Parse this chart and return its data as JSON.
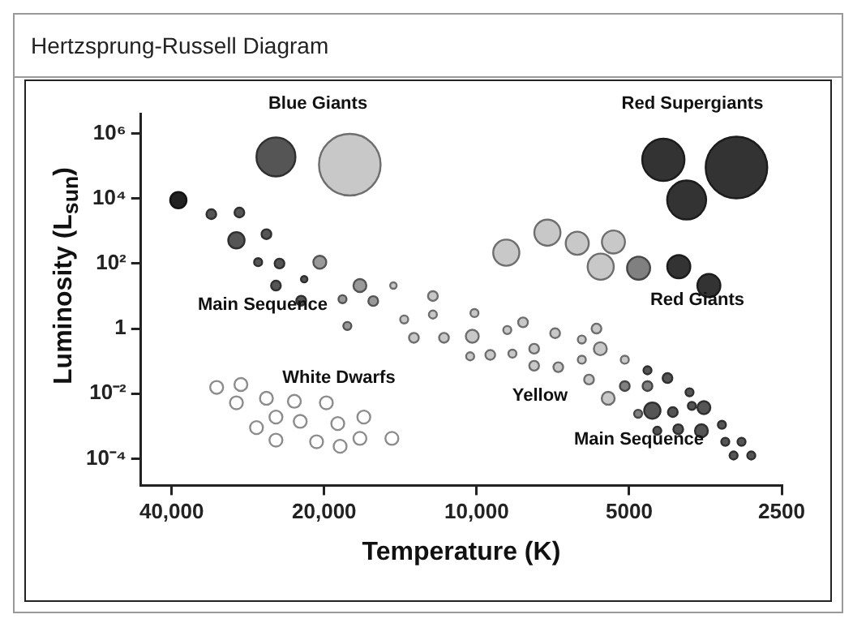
{
  "chart_data": {
    "type": "bubble",
    "title": "Hertzsprung-Russell Diagram",
    "xlabel": "Temperature (K)",
    "ylabel": "Luminosity (L$_{sun}$)",
    "log": "xy",
    "grid": false,
    "legend": false,
    "xlim": [
      46000,
      2500
    ],
    "xticks": [
      {
        "value": 40000,
        "label": "40,000"
      },
      {
        "value": 20000,
        "label": "20,000"
      },
      {
        "value": 10000,
        "label": "10,000"
      },
      5000,
      2500
    ],
    "ylim": [
      1.5e-05,
      4000000
    ],
    "yticks": [
      {
        "value": 0.0001,
        "label": "10⁻⁴"
      },
      {
        "value": 0.01,
        "label": "10⁻²"
      },
      1,
      {
        "value": 100,
        "label": "10²"
      },
      {
        "value": 10000,
        "label": "10⁴"
      },
      {
        "value": 1000000,
        "label": "10⁶"
      }
    ],
    "series": [
      {
        "color": "#222222",
        "x": [
          38800
        ],
        "values": [
          8900
        ],
        "sizes": [
          0.07
        ]
      },
      {
        "color": "#555555",
        "x": [
          24900,
          33400,
          29400,
          29800,
          26000,
          27000,
          24500,
          24900,
          21900,
          22200,
          4600,
          4200,
          3800,
          4500,
          4100,
          3760,
          3560,
          4400,
          4000,
          3600,
          3280,
          3230,
          3000,
          3110,
          2870
        ],
        "values": [
          190000,
          3300,
          3700,
          520,
          800,
          110,
          100,
          21,
          33,
          7.2,
          0.052,
          0.03,
          0.011,
          0.003,
          0.0027,
          0.0042,
          0.0037,
          0.00072,
          0.0008,
          0.00072,
          0.0011,
          0.00033,
          0.00033,
          0.000125,
          0.000125
        ],
        "sizes": [
          0.4,
          0.025,
          0.025,
          0.07,
          0.025,
          0.017,
          0.025,
          0.025,
          0.011,
          0.025,
          0.017,
          0.025,
          0.017,
          0.07,
          0.025,
          0.017,
          0.044,
          0.017,
          0.025,
          0.044,
          0.017,
          0.017,
          0.017,
          0.017,
          0.017
        ]
      },
      {
        "color": "#333333",
        "x": [
          4280,
          3070,
          3850,
          3990,
          3480
        ],
        "values": [
          155000,
          90000,
          9000,
          80,
          21
        ],
        "sizes": [
          0.47,
          1,
          0.4,
          0.14,
          0.14
        ]
      },
      {
        "color": "#808080",
        "x": [
          4790,
          5100,
          4600,
          4800
        ],
        "values": [
          72,
          0.017,
          0.017,
          0.0024
        ],
        "sizes": [
          0.14,
          0.025,
          0.025,
          0.017
        ]
      },
      {
        "color": "#999999",
        "x": [
          20400,
          18400,
          17000,
          16000,
          18000
        ],
        "values": [
          110,
          8,
          21,
          7,
          1.2
        ],
        "sizes": [
          0.044,
          0.017,
          0.044,
          0.025,
          0.017
        ]
      },
      {
        "color": "#c8c8c8",
        "x": [
          17800,
          8740,
          7250,
          6330,
          5370,
          5690,
          14600,
          12200,
          13900,
          13300,
          12200,
          10100,
          11600,
          10200,
          8700,
          8100,
          7000,
          6200,
          5800,
          5700,
          10300,
          9400,
          8500,
          7700,
          7700,
          6900,
          6200,
          5100,
          6000,
          5500
        ],
        "values": [
          110000,
          215,
          890,
          420,
          460,
          80,
          21,
          10,
          1.9,
          0.52,
          2.7,
          3,
          0.52,
          0.58,
          0.9,
          1.55,
          0.72,
          0.46,
          1,
          0.24,
          0.14,
          0.155,
          0.17,
          0.24,
          0.072,
          0.065,
          0.11,
          0.11,
          0.027,
          0.0072
        ],
        "sizes": [
          1,
          0.18,
          0.18,
          0.14,
          0.14,
          0.18,
          0.011,
          0.025,
          0.017,
          0.025,
          0.017,
          0.017,
          0.025,
          0.044,
          0.017,
          0.025,
          0.025,
          0.017,
          0.025,
          0.044,
          0.017,
          0.025,
          0.017,
          0.025,
          0.025,
          0.025,
          0.017,
          0.017,
          0.025,
          0.044
        ]
      },
      {
        "color": "#ffffff",
        "x": [
          32600,
          29200,
          29800,
          26000,
          22900,
          19800,
          24900,
          22300,
          18800,
          16700,
          27200,
          24900,
          20700,
          18600,
          17000,
          14700
        ],
        "values": [
          0.0155,
          0.019,
          0.0052,
          0.0072,
          0.0058,
          0.0052,
          0.0019,
          0.0014,
          0.0012,
          0.0019,
          0.0009,
          0.00037,
          0.00033,
          0.00024,
          0.00042,
          0.00042
        ],
        "sizes": [
          0.044,
          0.044,
          0.044,
          0.044,
          0.044,
          0.044,
          0.044,
          0.044,
          0.044,
          0.044,
          0.044,
          0.044,
          0.044,
          0.044,
          0.044,
          0.044
        ]
      }
    ],
    "annotations": [
      "Blue Giants",
      "Red Supergiants",
      "Red Giants",
      "Main Sequence",
      "White Dwarfs",
      "Yellow",
      "Main Sequence"
    ]
  }
}
